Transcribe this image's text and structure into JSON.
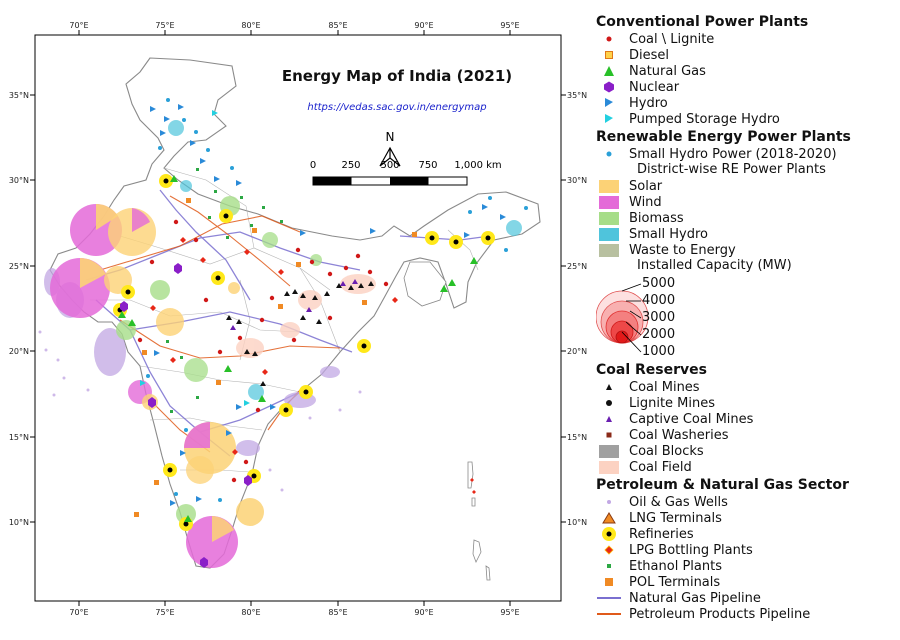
{
  "map": {
    "title": "Energy Map of India (2021)",
    "url": "https://vedas.sac.gov.in/energymap",
    "north_arrow": "N",
    "scalebar": {
      "labels": [
        "0",
        "250",
        "500",
        "750",
        "1,000 km"
      ]
    },
    "lon_labels": [
      "70°E",
      "75°E",
      "80°E",
      "85°E",
      "90°E",
      "95°E"
    ],
    "lat_labels": [
      "35°N",
      "30°N",
      "25°N",
      "20°N",
      "15°N",
      "10°N"
    ],
    "colors": {
      "frame": "#000000",
      "land": "#ffffff",
      "border": "#8a8a8a",
      "gas_pipeline": "#7a6fd0",
      "petroleum_pipeline": "#e05a1a"
    }
  },
  "legend": {
    "conventional": {
      "title": "Conventional Power Plants",
      "items": [
        {
          "label": "Coal \\ Lignite",
          "icon": "red-dot"
        },
        {
          "label": "Diesel",
          "icon": "orange-square"
        },
        {
          "label": "Natural Gas",
          "icon": "green-triangle"
        },
        {
          "label": "Nuclear",
          "icon": "purple-hexagon"
        },
        {
          "label": "Hydro",
          "icon": "blue-flag"
        },
        {
          "label": "Pumped Storage Hydro",
          "icon": "cyan-flag"
        }
      ]
    },
    "renewable": {
      "title": "Renewable Energy Power Plants",
      "small_hydro": "Small Hydro Power (2018-2020)",
      "district_title": "District-wise RE Power Plants",
      "items": [
        {
          "label": "Solar",
          "color": "#fcd276"
        },
        {
          "label": "Wind",
          "color": "#e46ad8"
        },
        {
          "label": "Biomass",
          "color": "#a6dd88"
        },
        {
          "label": "Small Hydro",
          "color": "#4fc4dc"
        },
        {
          "label": "Waste to Energy",
          "color": "#b8c0a0"
        }
      ],
      "capacity_title": "Installed Capacity (MW)",
      "capacity_values": [
        "5000",
        "4000",
        "3000",
        "2000",
        "1000"
      ]
    },
    "coal": {
      "title": "Coal Reserves",
      "items": [
        {
          "label": "Coal Mines",
          "icon": "black-triangle"
        },
        {
          "label": "Lignite Mines",
          "icon": "black-dot"
        },
        {
          "label": "Captive Coal Mines",
          "icon": "purple-triangle"
        },
        {
          "label": "Coal Washeries",
          "icon": "brown-square"
        },
        {
          "label": "Coal Blocks",
          "color": "#a0a0a0"
        },
        {
          "label": "Coal Field",
          "color": "#fcd2c2"
        }
      ]
    },
    "petroleum": {
      "title": "Petroleum & Natural Gas Sector",
      "items": [
        {
          "label": "Oil & Gas Wells",
          "icon": "lavender-dot"
        },
        {
          "label": "LNG Terminals",
          "icon": "orange-triangle"
        },
        {
          "label": "Refineries",
          "icon": "refinery-icon"
        },
        {
          "label": "LPG Bottling Plants",
          "icon": "red-diamond"
        },
        {
          "label": "Ethanol Plants",
          "icon": "green-square"
        },
        {
          "label": "POL Terminals",
          "icon": "orange-square"
        },
        {
          "label": "Natural Gas Pipeline",
          "icon": "purple-line"
        },
        {
          "label": "Petroleum Products Pipeline",
          "icon": "orange-line"
        }
      ]
    }
  }
}
